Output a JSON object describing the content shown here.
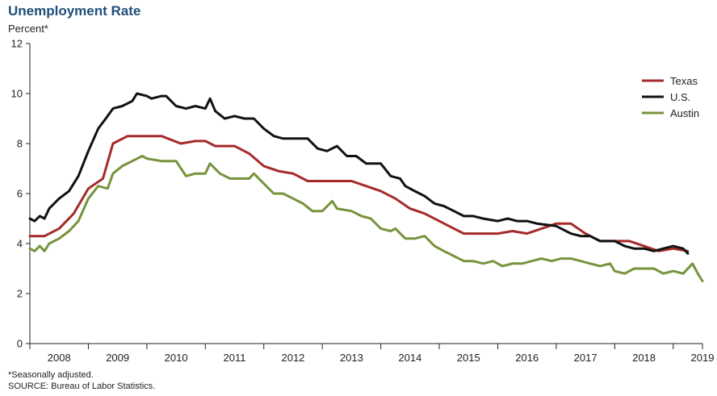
{
  "chart_data": {
    "type": "line",
    "title": "Unemployment Rate",
    "ylabel": "Percent*",
    "xlabel": "",
    "ylim": [
      0,
      12
    ],
    "yticks": [
      "0",
      "2",
      "4",
      "6",
      "8",
      "10",
      "12"
    ],
    "xlim": [
      2008,
      2019.5
    ],
    "x_tick_labels": [
      "2008",
      "2009",
      "2010",
      "2011",
      "2012",
      "2013",
      "2014",
      "2015",
      "2016",
      "2017",
      "2018",
      "2019"
    ],
    "grid": false,
    "legend": "top-right",
    "series": [
      {
        "name": "Texas",
        "color": "#a52a2a",
        "points": [
          [
            2008.0,
            4.3
          ],
          [
            2008.25,
            4.3
          ],
          [
            2008.5,
            4.6
          ],
          [
            2008.75,
            5.2
          ],
          [
            2009.0,
            6.2
          ],
          [
            2009.25,
            6.6
          ],
          [
            2009.42,
            8.0
          ],
          [
            2009.67,
            8.3
          ],
          [
            2010.0,
            8.3
          ],
          [
            2010.25,
            8.3
          ],
          [
            2010.58,
            8.0
          ],
          [
            2010.83,
            8.1
          ],
          [
            2011.0,
            8.1
          ],
          [
            2011.17,
            7.9
          ],
          [
            2011.5,
            7.9
          ],
          [
            2011.75,
            7.6
          ],
          [
            2012.0,
            7.1
          ],
          [
            2012.25,
            6.9
          ],
          [
            2012.5,
            6.8
          ],
          [
            2012.75,
            6.5
          ],
          [
            2013.0,
            6.5
          ],
          [
            2013.5,
            6.5
          ],
          [
            2013.75,
            6.3
          ],
          [
            2014.0,
            6.1
          ],
          [
            2014.25,
            5.8
          ],
          [
            2014.5,
            5.4
          ],
          [
            2014.75,
            5.2
          ],
          [
            2015.0,
            4.9
          ],
          [
            2015.25,
            4.6
          ],
          [
            2015.42,
            4.4
          ],
          [
            2015.75,
            4.4
          ],
          [
            2016.0,
            4.4
          ],
          [
            2016.25,
            4.5
          ],
          [
            2016.5,
            4.4
          ],
          [
            2016.75,
            4.6
          ],
          [
            2017.0,
            4.8
          ],
          [
            2017.25,
            4.8
          ],
          [
            2017.5,
            4.4
          ],
          [
            2017.75,
            4.1
          ],
          [
            2018.0,
            4.1
          ],
          [
            2018.25,
            4.1
          ],
          [
            2018.5,
            3.9
          ],
          [
            2018.75,
            3.7
          ],
          [
            2019.0,
            3.8
          ],
          [
            2019.25,
            3.7
          ]
        ]
      },
      {
        "name": "U.S.",
        "color": "#111111",
        "points": [
          [
            2008.0,
            5.0
          ],
          [
            2008.08,
            4.9
          ],
          [
            2008.17,
            5.1
          ],
          [
            2008.25,
            5.0
          ],
          [
            2008.33,
            5.4
          ],
          [
            2008.5,
            5.8
          ],
          [
            2008.67,
            6.1
          ],
          [
            2008.83,
            6.7
          ],
          [
            2009.0,
            7.7
          ],
          [
            2009.17,
            8.6
          ],
          [
            2009.33,
            9.1
          ],
          [
            2009.42,
            9.4
          ],
          [
            2009.58,
            9.5
          ],
          [
            2009.75,
            9.7
          ],
          [
            2009.83,
            10.0
          ],
          [
            2010.0,
            9.9
          ],
          [
            2010.08,
            9.8
          ],
          [
            2010.25,
            9.9
          ],
          [
            2010.33,
            9.9
          ],
          [
            2010.5,
            9.5
          ],
          [
            2010.67,
            9.4
          ],
          [
            2010.83,
            9.5
          ],
          [
            2011.0,
            9.4
          ],
          [
            2011.08,
            9.8
          ],
          [
            2011.17,
            9.3
          ],
          [
            2011.33,
            9.0
          ],
          [
            2011.5,
            9.1
          ],
          [
            2011.67,
            9.0
          ],
          [
            2011.83,
            9.0
          ],
          [
            2012.0,
            8.6
          ],
          [
            2012.17,
            8.3
          ],
          [
            2012.33,
            8.2
          ],
          [
            2012.5,
            8.2
          ],
          [
            2012.75,
            8.2
          ],
          [
            2012.92,
            7.8
          ],
          [
            2013.08,
            7.7
          ],
          [
            2013.25,
            7.9
          ],
          [
            2013.42,
            7.5
          ],
          [
            2013.58,
            7.5
          ],
          [
            2013.75,
            7.2
          ],
          [
            2014.0,
            7.2
          ],
          [
            2014.17,
            6.7
          ],
          [
            2014.33,
            6.6
          ],
          [
            2014.42,
            6.3
          ],
          [
            2014.58,
            6.1
          ],
          [
            2014.75,
            5.9
          ],
          [
            2014.92,
            5.6
          ],
          [
            2015.08,
            5.5
          ],
          [
            2015.25,
            5.3
          ],
          [
            2015.42,
            5.1
          ],
          [
            2015.58,
            5.1
          ],
          [
            2015.75,
            5.0
          ],
          [
            2016.0,
            4.9
          ],
          [
            2016.17,
            5.0
          ],
          [
            2016.33,
            4.9
          ],
          [
            2016.5,
            4.9
          ],
          [
            2016.67,
            4.8
          ],
          [
            2017.0,
            4.7
          ],
          [
            2017.25,
            4.4
          ],
          [
            2017.42,
            4.3
          ],
          [
            2017.58,
            4.3
          ],
          [
            2017.75,
            4.1
          ],
          [
            2018.0,
            4.1
          ],
          [
            2018.17,
            3.9
          ],
          [
            2018.33,
            3.8
          ],
          [
            2018.5,
            3.8
          ],
          [
            2018.67,
            3.7
          ],
          [
            2018.83,
            3.8
          ],
          [
            2019.0,
            3.9
          ],
          [
            2019.17,
            3.8
          ],
          [
            2019.25,
            3.6
          ]
        ]
      },
      {
        "name": "Austin",
        "color": "#77933c",
        "points": [
          [
            2008.0,
            3.8
          ],
          [
            2008.08,
            3.7
          ],
          [
            2008.17,
            3.9
          ],
          [
            2008.25,
            3.7
          ],
          [
            2008.33,
            4.0
          ],
          [
            2008.5,
            4.2
          ],
          [
            2008.67,
            4.5
          ],
          [
            2008.83,
            4.9
          ],
          [
            2009.0,
            5.8
          ],
          [
            2009.17,
            6.3
          ],
          [
            2009.33,
            6.2
          ],
          [
            2009.42,
            6.8
          ],
          [
            2009.58,
            7.1
          ],
          [
            2009.75,
            7.3
          ],
          [
            2009.92,
            7.5
          ],
          [
            2010.0,
            7.4
          ],
          [
            2010.25,
            7.3
          ],
          [
            2010.5,
            7.3
          ],
          [
            2010.67,
            6.7
          ],
          [
            2010.83,
            6.8
          ],
          [
            2011.0,
            6.8
          ],
          [
            2011.08,
            7.2
          ],
          [
            2011.25,
            6.8
          ],
          [
            2011.42,
            6.6
          ],
          [
            2011.58,
            6.6
          ],
          [
            2011.75,
            6.6
          ],
          [
            2011.83,
            6.8
          ],
          [
            2012.0,
            6.4
          ],
          [
            2012.17,
            6.0
          ],
          [
            2012.33,
            6.0
          ],
          [
            2012.5,
            5.8
          ],
          [
            2012.67,
            5.6
          ],
          [
            2012.83,
            5.3
          ],
          [
            2013.0,
            5.3
          ],
          [
            2013.17,
            5.7
          ],
          [
            2013.25,
            5.4
          ],
          [
            2013.5,
            5.3
          ],
          [
            2013.67,
            5.1
          ],
          [
            2013.83,
            5.0
          ],
          [
            2014.0,
            4.6
          ],
          [
            2014.17,
            4.5
          ],
          [
            2014.25,
            4.6
          ],
          [
            2014.42,
            4.2
          ],
          [
            2014.58,
            4.2
          ],
          [
            2014.75,
            4.3
          ],
          [
            2014.92,
            3.9
          ],
          [
            2015.08,
            3.7
          ],
          [
            2015.25,
            3.5
          ],
          [
            2015.42,
            3.3
          ],
          [
            2015.58,
            3.3
          ],
          [
            2015.75,
            3.2
          ],
          [
            2015.92,
            3.3
          ],
          [
            2016.08,
            3.1
          ],
          [
            2016.25,
            3.2
          ],
          [
            2016.42,
            3.2
          ],
          [
            2016.58,
            3.3
          ],
          [
            2016.75,
            3.4
          ],
          [
            2016.92,
            3.3
          ],
          [
            2017.08,
            3.4
          ],
          [
            2017.25,
            3.4
          ],
          [
            2017.42,
            3.3
          ],
          [
            2017.58,
            3.2
          ],
          [
            2017.75,
            3.1
          ],
          [
            2017.92,
            3.2
          ],
          [
            2018.0,
            2.9
          ],
          [
            2018.17,
            2.8
          ],
          [
            2018.33,
            3.0
          ],
          [
            2018.5,
            3.0
          ],
          [
            2018.67,
            3.0
          ],
          [
            2018.83,
            2.8
          ],
          [
            2019.0,
            2.9
          ],
          [
            2019.17,
            2.8
          ],
          [
            2019.33,
            3.2
          ],
          [
            2019.42,
            2.8
          ],
          [
            2019.5,
            2.5
          ]
        ]
      }
    ]
  },
  "footnotes": {
    "note": "*Seasonally adjusted.",
    "source": "SOURCE:  Bureau of Labor Statistics."
  }
}
